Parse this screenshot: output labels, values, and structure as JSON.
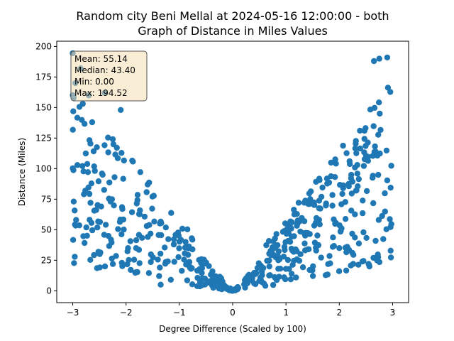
{
  "chart_data": {
    "type": "scatter",
    "title_line1": "Random city Beni Mellal at 2024-05-16 12:00:00  - both",
    "title_line2": "Graph of Distance in Miles Values",
    "xlabel": "Degree Difference (Scaled by 100)",
    "ylabel": "Distance (Miles)",
    "xlim": [
      -3.3,
      3.3
    ],
    "ylim": [
      -9.7,
      204.3
    ],
    "xticks": [
      -3,
      -2,
      -1,
      0,
      1,
      2,
      3
    ],
    "yticks": [
      0,
      25,
      50,
      75,
      100,
      125,
      150,
      175,
      200
    ],
    "point_color": "#1f77b4",
    "stats_box": {
      "mean": "Mean: 55.14",
      "median": "Median: 43.40",
      "min": "Min: 0.00",
      "max": "Max: 194.52",
      "bg_color": "#f5deb3"
    },
    "notable_points": [
      {
        "x": -3.0,
        "y": 194.5
      },
      {
        "x": -2.95,
        "y": 170
      },
      {
        "x": -2.85,
        "y": 182
      },
      {
        "x": -2.7,
        "y": 160
      },
      {
        "x": -2.4,
        "y": 162
      },
      {
        "x": -2.1,
        "y": 148
      },
      {
        "x": 0.0,
        "y": 0.0
      },
      {
        "x": 2.65,
        "y": 188
      },
      {
        "x": 2.75,
        "y": 190
      },
      {
        "x": 2.9,
        "y": 191
      },
      {
        "x": 2.55,
        "y": 22
      },
      {
        "x": -1.35,
        "y": 5
      }
    ]
  }
}
